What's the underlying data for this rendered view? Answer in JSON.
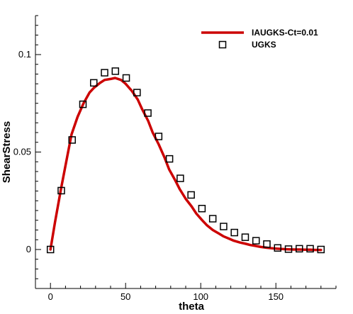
{
  "chart_data": {
    "type": "line",
    "title": "",
    "xlabel": "theta",
    "ylabel": "ShearStress",
    "xlim": [
      -10,
      190
    ],
    "ylim": [
      -0.02,
      0.12
    ],
    "xticks": [
      0,
      50,
      100,
      150
    ],
    "yticks": [
      0,
      0.05,
      0.1
    ],
    "xtick_labels": [
      "0",
      "50",
      "100",
      "150"
    ],
    "ytick_labels": [
      "0",
      "0.05",
      "0.1"
    ],
    "grid": false,
    "legend_position": "top-right",
    "series": [
      {
        "name": "IAUGKS-Ct=0.01",
        "style": "line",
        "color": "#cc0000",
        "x": [
          0,
          3,
          7,
          11,
          14,
          18,
          22,
          26,
          29,
          33,
          36,
          40,
          43,
          47,
          50,
          54,
          58,
          61,
          65,
          68,
          72,
          76,
          79,
          83,
          86,
          90,
          94,
          97,
          101,
          104,
          108,
          112,
          115,
          119,
          122,
          126,
          130,
          133,
          137,
          140,
          144,
          148,
          151,
          155,
          158,
          162,
          166,
          169,
          173,
          176,
          180
        ],
        "y": [
          0.0,
          0.014,
          0.031,
          0.047,
          0.059,
          0.068,
          0.075,
          0.0805,
          0.083,
          0.0855,
          0.087,
          0.0875,
          0.088,
          0.087,
          0.085,
          0.0815,
          0.077,
          0.072,
          0.066,
          0.06,
          0.054,
          0.047,
          0.041,
          0.0355,
          0.031,
          0.026,
          0.022,
          0.0185,
          0.015,
          0.0125,
          0.01,
          0.0082,
          0.0068,
          0.0055,
          0.0045,
          0.0036,
          0.0029,
          0.0023,
          0.0018,
          0.0013,
          0.0009,
          0.0006,
          0.0004,
          0.0002,
          0.0001,
          0.0,
          0.0,
          -0.0001,
          -0.0001,
          -0.0002,
          -0.0002
        ]
      },
      {
        "name": "UGKS",
        "style": "marker",
        "marker": "square",
        "color": "#000000",
        "x": [
          0,
          7.2,
          14.4,
          21.6,
          28.8,
          36,
          43.2,
          50.4,
          57.6,
          64.8,
          72,
          79.2,
          86.4,
          93.6,
          100.8,
          108,
          115.2,
          122.4,
          129.6,
          136.8,
          144,
          151.2,
          158.4,
          165.6,
          172.8,
          180
        ],
        "y": [
          0.0,
          0.0302,
          0.0562,
          0.0745,
          0.0855,
          0.0907,
          0.0915,
          0.088,
          0.0805,
          0.07,
          0.058,
          0.0465,
          0.0365,
          0.028,
          0.021,
          0.0158,
          0.0118,
          0.0087,
          0.0063,
          0.0045,
          0.0028,
          0.0008,
          0.0002,
          0.0004,
          0.0004,
          0.0
        ]
      }
    ]
  }
}
